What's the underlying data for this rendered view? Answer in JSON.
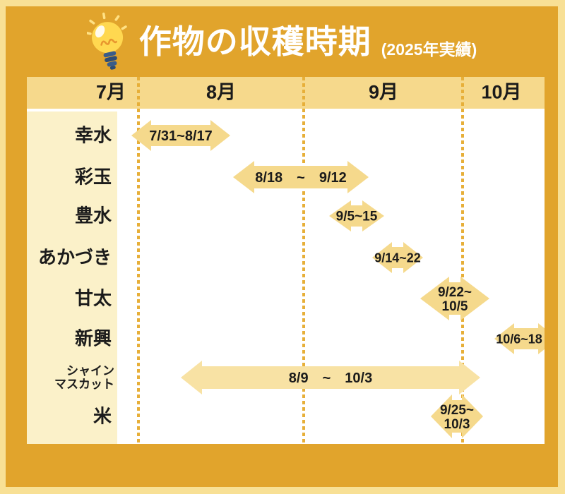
{
  "header": {
    "title": "作物の収穫時期",
    "subtitle": "(2025年実績)",
    "icon": "lightbulb-icon"
  },
  "colors": {
    "frame": "#F8E095",
    "background": "#E1A42C",
    "header_band": "#F6D98C",
    "arrow_fill": "#F5D98C",
    "arrow_fill_light": "#F8E2A4",
    "label_column": "#FBF1C9",
    "dotted_line": "#E7AF39",
    "text": "#1B1B1B",
    "title_text": "#FFFFFF",
    "plot_background": "#FFFFFF"
  },
  "chart_data": {
    "type": "bar",
    "subtype": "gantt-harvest-timeline",
    "title": "作物の収穫時期",
    "subtitle": "(2025年実績)",
    "x_axis": {
      "tick_labels": [
        "7月",
        "8月",
        "9月",
        "10月"
      ],
      "range_start": "7月下旬",
      "range_end": "10月中旬",
      "grid": "dotted-month-dividers",
      "note": "timeline clipped at right edge (新興 arrow runs past 10月中旬)"
    },
    "legend": null,
    "rows": [
      {
        "crop": "幸水",
        "crop_lines": [
          "幸水"
        ],
        "start": "7/31",
        "end": "8/17",
        "period_lines": [
          "7/31~8/17"
        ]
      },
      {
        "crop": "彩玉",
        "crop_lines": [
          "彩玉"
        ],
        "start": "8/18",
        "end": "9/12",
        "period_lines": [
          "8/18　~　9/12"
        ]
      },
      {
        "crop": "豊水",
        "crop_lines": [
          "豊水"
        ],
        "start": "9/5",
        "end": "9/15",
        "period_lines": [
          "9/5~15"
        ]
      },
      {
        "crop": "あかづき",
        "crop_lines": [
          "あかづき"
        ],
        "start": "9/14",
        "end": "9/22",
        "period_lines": [
          "9/14~22"
        ]
      },
      {
        "crop": "甘太",
        "crop_lines": [
          "甘太"
        ],
        "start": "9/22",
        "end": "10/5",
        "period_lines": [
          "9/22~",
          "10/5"
        ]
      },
      {
        "crop": "新興",
        "crop_lines": [
          "新興"
        ],
        "start": "10/6",
        "end": "10/18",
        "period_lines": [
          "10/6~18"
        ]
      },
      {
        "crop": "シャインマスカット",
        "crop_lines": [
          "シャイン",
          "マスカット"
        ],
        "start": "8/9",
        "end": "10/3",
        "period_lines": [
          "8/9　~　10/3"
        ]
      },
      {
        "crop": "米",
        "crop_lines": [
          "米"
        ],
        "start": "9/25",
        "end": "10/3",
        "period_lines": [
          "9/25~",
          "10/3"
        ]
      }
    ]
  }
}
